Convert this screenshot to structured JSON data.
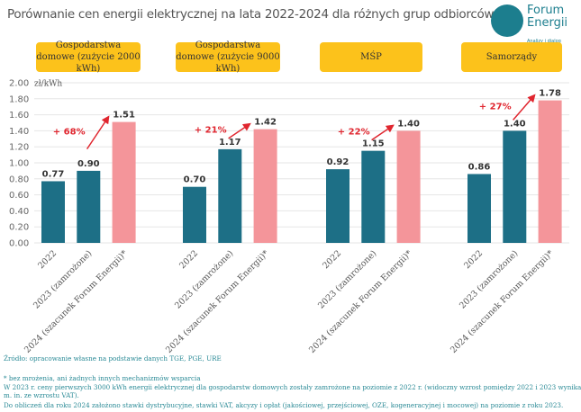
{
  "chart_data": {
    "type": "bar",
    "title": "Porównanie cen energii elektrycznej na lata 2022-2024 dla różnych grup odbiorców",
    "ylabel": "zł/kWh",
    "ylim": [
      0,
      2.0
    ],
    "yticks": [
      "0.00",
      "0.20",
      "0.40",
      "0.60",
      "0.80",
      "1.00",
      "1.20",
      "1.40",
      "1.60",
      "1.80",
      "2.00"
    ],
    "grid": true,
    "categories": [
      "2022",
      "2023 (zamrożone)",
      "2024 (szacunek Forum Energii)*"
    ],
    "groups": [
      {
        "name": "Gospodarstwa domowe (zużycie 2000 kWh)",
        "values": [
          0.77,
          0.9,
          1.51
        ],
        "labels": [
          "0.77",
          "0.90",
          "1.51"
        ],
        "change": "+ 68%"
      },
      {
        "name": "Gospodarstwa domowe (zużycie 9000 kWh)",
        "values": [
          0.7,
          1.17,
          1.42
        ],
        "labels": [
          "0.70",
          "1.17",
          "1.42"
        ],
        "change": "+ 21%"
      },
      {
        "name": "MŚP",
        "values": [
          0.92,
          1.15,
          1.4
        ],
        "labels": [
          "0.92",
          "1.15",
          "1.40"
        ],
        "change": "+ 22%"
      },
      {
        "name": "Samorządy",
        "values": [
          0.86,
          1.4,
          1.78
        ],
        "labels": [
          "0.86",
          "1.40",
          "1.78"
        ],
        "change": "+ 27%"
      }
    ],
    "colors": {
      "actual": "#1d6f86",
      "estimate": "#f4959a",
      "change": "#e0262f",
      "legend": "#fcc21b"
    }
  },
  "logo": {
    "line1": "Forum",
    "line2": "Energii",
    "tagline": "Analizy i dialog"
  },
  "footer": {
    "source": "Źródło: opracowanie własne na podstawie danych TGE, PGE, URE",
    "note1": "* bez mrożenia, ani żadnych innych mechanizmów wsparcia",
    "note2": "W 2023 r. ceny pierwszych 3000 kWh energii elektrycznej dla gospodarstw domowych zostały zamrożone na poziomie z 2022 r. (widoczny wzrost pomiędzy 2022 i 2023 wynika",
    "note3": "m. in. ze wzrostu VAT).",
    "note4": "Do obliczeń dla roku 2024 założono stawki dystrybucyjne, stawki VAT, akcyzy i opłat (jakościowej, przejściowej, OZE, kogeneracyjnej i mocowej) na poziomie z roku 2023."
  }
}
